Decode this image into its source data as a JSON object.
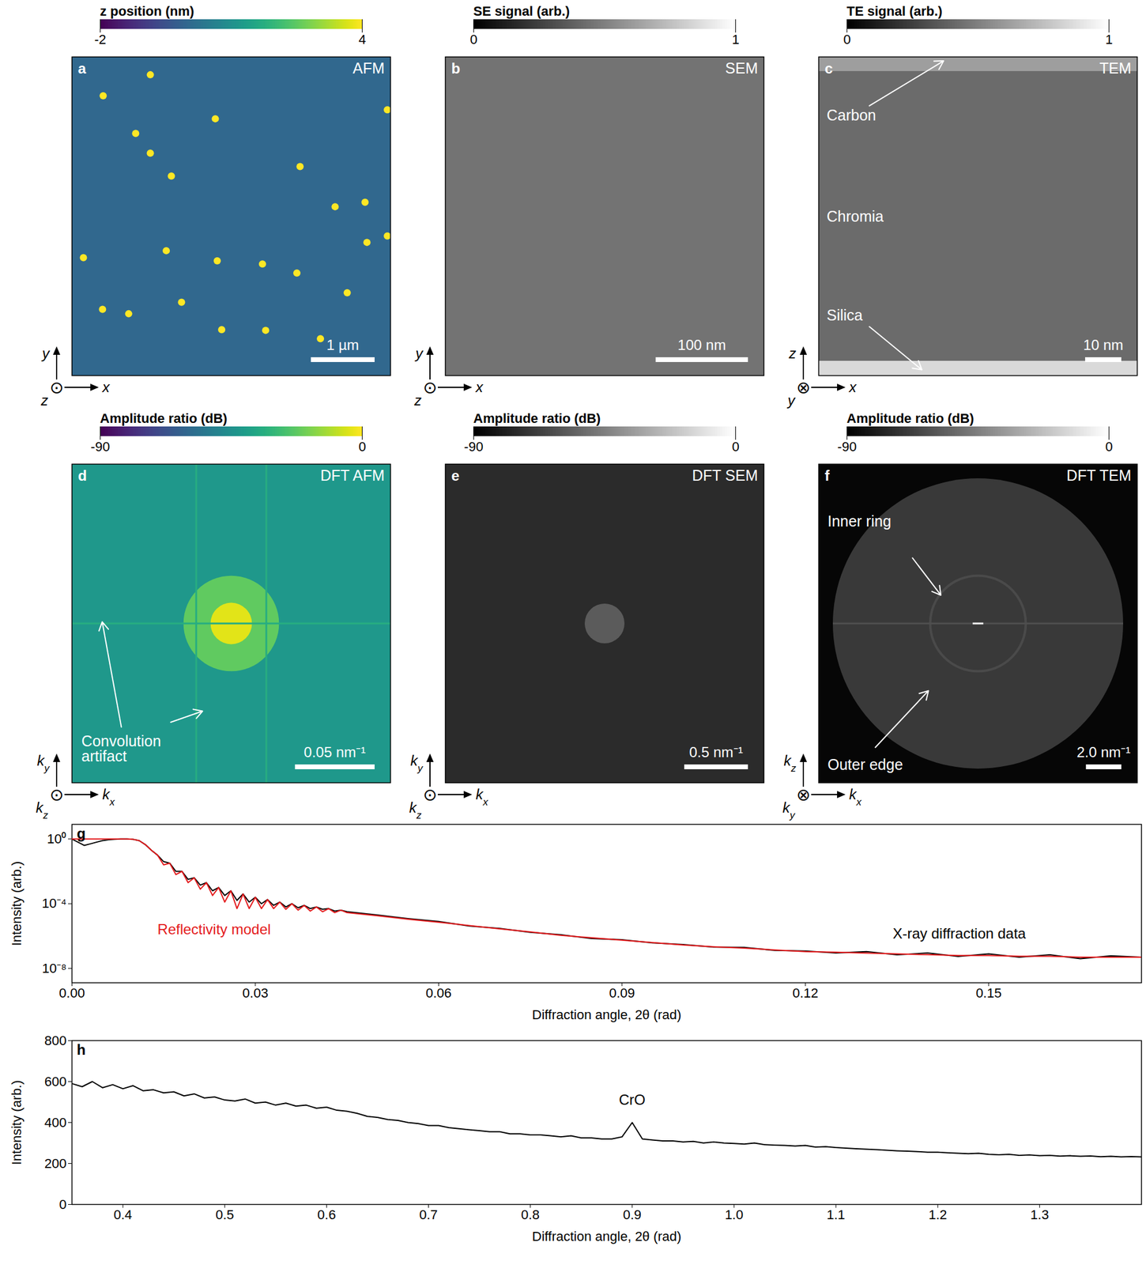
{
  "chart_data": [
    {
      "type": "image",
      "panel": "a",
      "title": "AFM",
      "colorbar": {
        "label": "z position (nm)",
        "range": [
          -2,
          4
        ],
        "ticks": [
          -2,
          4
        ],
        "color": "viridis"
      },
      "xlim": [
        0,
        5
      ],
      "ylim": [
        0,
        5
      ],
      "tick_labels": false,
      "axes": {
        "horizontal": {
          "text": "x"
        },
        "vertical": {
          "text": "y"
        },
        "normal": {
          "text": "z",
          "symbol": "⊙"
        }
      },
      "scale_bar": {
        "value": 1,
        "label": "1 µm"
      },
      "regions": [
        {
          "x": [
            0,
            5
          ],
          "y": [
            0,
            5
          ],
          "level": 0
        }
      ],
      "particles": {
        "x": [
          0.49,
          1.23,
          2.25,
          1.0,
          1.23,
          1.56,
          3.58,
          4.95,
          4.13,
          4.6,
          4.63,
          4.95,
          1.48,
          0.18,
          2.28,
          2.99,
          3.53,
          4.32,
          0.48,
          0.89,
          1.72,
          2.35,
          3.04,
          3.9
        ],
        "y": [
          4.39,
          4.72,
          4.03,
          3.8,
          3.49,
          3.13,
          3.28,
          4.17,
          2.65,
          2.72,
          2.09,
          2.19,
          1.96,
          1.85,
          1.8,
          1.75,
          1.61,
          1.3,
          1.04,
          0.97,
          1.15,
          0.72,
          0.71,
          0.58
        ],
        "z": [
          4,
          4,
          4,
          4,
          4,
          4,
          4,
          4,
          4,
          4,
          4,
          4,
          4,
          4,
          4,
          4,
          4,
          4,
          4,
          4,
          4,
          4,
          4,
          4
        ]
      },
      "annotations": []
    },
    {
      "type": "image",
      "panel": "b",
      "title": "SEM",
      "colorbar": {
        "label": "SE signal (arb.)",
        "range": [
          0,
          1
        ],
        "ticks": [
          0,
          1
        ],
        "color": "greys"
      },
      "xlim": [
        0,
        345
      ],
      "ylim": [
        0,
        345
      ],
      "tick_labels": false,
      "axes": {
        "horizontal": {
          "text": "x"
        },
        "vertical": {
          "text": "y"
        },
        "normal": {
          "text": "z",
          "symbol": "⊙"
        }
      },
      "scale_bar": {
        "value": 100,
        "label": "100 nm"
      },
      "regions": [
        {
          "x": [
            0,
            345
          ],
          "y": [
            0,
            345
          ],
          "level": 0.45
        }
      ],
      "annotations": []
    },
    {
      "type": "image",
      "panel": "c",
      "title": "TEM",
      "colorbar": {
        "label": "TE signal (arb.)",
        "range": [
          0,
          1
        ],
        "ticks": [
          0,
          1
        ],
        "color": "greys"
      },
      "xlim": [
        0,
        88
      ],
      "ylim": [
        0,
        88
      ],
      "tick_labels": false,
      "axes": {
        "horizontal": {
          "text": "x"
        },
        "vertical": {
          "text": "z"
        },
        "normal": {
          "text": "y",
          "symbol": "⊗"
        }
      },
      "scale_bar": {
        "value": 10,
        "label": "10 nm"
      },
      "regions": [
        {
          "x": [
            0,
            88
          ],
          "y": [
            0,
            88
          ],
          "level": 0.42
        },
        {
          "x": [
            0,
            88
          ],
          "y": [
            84,
            88
          ],
          "level": 0.62
        },
        {
          "x": [
            0,
            88
          ],
          "y": [
            0,
            4
          ],
          "level": 0.85
        }
      ],
      "annotations": [
        {
          "text": "Carbon",
          "x": 2.2,
          "y": 71.7,
          "arrows": [
            [
              14,
              74.5,
              34.5,
              86.9
            ]
          ]
        },
        {
          "text": "Chromia",
          "x": 2.2,
          "y": 43.9
        },
        {
          "text": "Silica",
          "x": 2.2,
          "y": 16.5,
          "arrows": [
            [
              14,
              13.5,
              28.5,
              1.6
            ]
          ]
        }
      ]
    },
    {
      "type": "image",
      "panel": "d",
      "title": "DFT AFM",
      "colorbar": {
        "label": "Amplitude ratio (dB)",
        "range": [
          -90,
          0
        ],
        "ticks": [
          -90,
          0
        ],
        "color": "viridis"
      },
      "xlim": [
        -0.1,
        0.1
      ],
      "ylim": [
        -0.1,
        0.1
      ],
      "tick_labels": false,
      "axes": {
        "horizontal": {
          "text": "k",
          "sub": "x"
        },
        "vertical": {
          "text": "k",
          "sub": "y"
        },
        "normal": {
          "text": "k",
          "sub": "z",
          "symbol": "⊙"
        }
      },
      "scale_bar": {
        "value": 0.05,
        "label": "0.05 nm⁻¹"
      },
      "regions": [
        {
          "x": [
            -0.1,
            0.1
          ],
          "y": [
            -0.1,
            0.1
          ],
          "level": -42
        }
      ],
      "disks": [
        {
          "x": 0,
          "y": 0,
          "r": 0.03,
          "level": -22
        },
        {
          "x": 0,
          "y": 0,
          "r": 0.013,
          "level": -4
        }
      ],
      "lines": [
        {
          "x": [
            -0.022,
            -0.022
          ],
          "y": [
            -0.1,
            0.1
          ],
          "level": -34
        },
        {
          "x": [
            0.022,
            0.022
          ],
          "y": [
            -0.1,
            0.1
          ],
          "level": -34
        },
        {
          "x": [
            -0.1,
            0.1
          ],
          "y": [
            0,
            0
          ],
          "level": -34
        }
      ],
      "annotations": [
        {
          "text": "Convolution\nartifact",
          "x": -0.094,
          "y": -0.079,
          "arrows": [
            [
              -0.069,
              -0.065,
              -0.081,
              0.001
            ],
            [
              -0.038,
              -0.062,
              -0.018,
              -0.055
            ]
          ]
        }
      ]
    },
    {
      "type": "image",
      "panel": "e",
      "title": "DFT SEM",
      "colorbar": {
        "label": "Amplitude ratio (dB)",
        "range": [
          -90,
          0
        ],
        "ticks": [
          -90,
          0
        ],
        "color": "greys"
      },
      "xlim": [
        -1.25,
        1.25
      ],
      "ylim": [
        -1.25,
        1.25
      ],
      "tick_labels": false,
      "axes": {
        "horizontal": {
          "text": "k",
          "sub": "x"
        },
        "vertical": {
          "text": "k",
          "sub": "y"
        },
        "normal": {
          "text": "k",
          "sub": "z",
          "symbol": "⊙"
        }
      },
      "scale_bar": {
        "value": 0.5,
        "label": "0.5 nm⁻¹"
      },
      "regions": [
        {
          "x": [
            -1.25,
            1.25
          ],
          "y": [
            -1.25,
            1.25
          ],
          "level": -75
        }
      ],
      "disks": [
        {
          "x": 0,
          "y": 0,
          "r": 0.156,
          "level": -58
        }
      ],
      "annotations": []
    },
    {
      "type": "image",
      "panel": "f",
      "title": "DFT TEM",
      "colorbar": {
        "label": "Amplitude ratio (dB)",
        "range": [
          -90,
          0
        ],
        "ticks": [
          -90,
          0
        ],
        "color": "greys"
      },
      "xlim": [
        -9,
        9
      ],
      "ylim": [
        -9,
        9
      ],
      "tick_labels": false,
      "axes": {
        "horizontal": {
          "text": "k",
          "sub": "x"
        },
        "vertical": {
          "text": "k",
          "sub": "z"
        },
        "normal": {
          "text": "k",
          "sub": "y",
          "symbol": "⊗"
        }
      },
      "scale_bar": {
        "value": 2,
        "label": "2.0 nm⁻¹"
      },
      "regions": [
        {
          "x": [
            -9,
            9
          ],
          "y": [
            -9,
            9
          ],
          "level": -88
        }
      ],
      "disks": [
        {
          "x": 0,
          "y": 0,
          "r": 8.2,
          "level": -70
        }
      ],
      "rings": [
        {
          "x": 0,
          "y": 0,
          "r": 2.7,
          "level": -64
        }
      ],
      "lines": [
        {
          "x": [
            -8.2,
            8.2
          ],
          "y": [
            0,
            0
          ],
          "level": -62
        },
        {
          "x": [
            -0.3,
            0.3
          ],
          "y": [
            0,
            0
          ],
          "level": -5
        }
      ],
      "annotations": [
        {
          "text": "Inner ring",
          "x": -8.5,
          "y": 5.74,
          "arrows": [
            [
              -3.7,
              3.7,
              -2.1,
              1.6
            ]
          ]
        },
        {
          "text": "Outer edge",
          "x": -8.5,
          "y": -8.0,
          "arrows": [
            [
              -5.8,
              -7.0,
              -2.8,
              -3.8
            ]
          ]
        }
      ]
    },
    {
      "type": "line",
      "panel": "g",
      "x_label": "Diffraction angle, 2θ (rad)",
      "y_label": "Intensity (arb.)",
      "log": "y",
      "xlim": [
        0,
        0.175
      ],
      "ylim": [
        1.3e-09,
        8
      ],
      "xticks": [
        {
          "value": 0,
          "label": "0.00"
        },
        0.03,
        0.06,
        0.09,
        0.12,
        0.15
      ],
      "yticks": [
        {
          "value": 1,
          "label": "10⁰"
        },
        {
          "value": 0.0001,
          "label": "10⁻⁴"
        },
        {
          "value": 1e-08,
          "label": "10⁻⁸"
        }
      ],
      "x": [
        0,
        0.001,
        0.002,
        0.003,
        0.004,
        0.005,
        0.006,
        0.007,
        0.008,
        0.009,
        0.01,
        0.011,
        0.012,
        0.013,
        0.014,
        0.015,
        0.016,
        0.017,
        0.018,
        0.019,
        0.02,
        0.021,
        0.022,
        0.023,
        0.024,
        0.025,
        0.026,
        0.027,
        0.028,
        0.029,
        0.03,
        0.031,
        0.032,
        0.033,
        0.034,
        0.035,
        0.036,
        0.037,
        0.038,
        0.039,
        0.04,
        0.041,
        0.042,
        0.043,
        0.044,
        0.045,
        0.05,
        0.055,
        0.06,
        0.065,
        0.07,
        0.075,
        0.08,
        0.085,
        0.09,
        0.095,
        0.1,
        0.105,
        0.11,
        0.115,
        0.12,
        0.125,
        0.13,
        0.135,
        0.14,
        0.145,
        0.15,
        0.155,
        0.16,
        0.165,
        0.17,
        0.175
      ],
      "series": [
        {
          "color": "#000000",
          "values": [
            1,
            0.63,
            0.4,
            0.5,
            0.63,
            0.79,
            0.89,
            0.95,
            1,
            1,
            0.95,
            0.79,
            0.45,
            0.2,
            0.1,
            0.04,
            0.032,
            0.01,
            0.01,
            0.0032,
            0.004,
            0.0014,
            0.002,
            0.00063,
            0.001,
            0.00032,
            0.00063,
            0.00016,
            0.0004,
            0.000126,
            0.00025,
            0.0001,
            0.00018,
            7.9e-05,
            0.000126,
            6.3e-05,
            0.0001,
            5.6e-05,
            7.9e-05,
            5e-05,
            6.3e-05,
            4.5e-05,
            5e-05,
            3.5e-05,
            4e-05,
            3.2e-05,
            2e-05,
            1.2e-05,
            7.9e-06,
            4.2e-06,
            3e-06,
            1.7e-06,
            1.2e-06,
            7e-07,
            6e-07,
            3.8e-07,
            3e-07,
            2.1e-07,
            2e-07,
            1.3e-07,
            1.2e-07,
            9e-08,
            1.1e-07,
            7e-08,
            9e-08,
            5.5e-08,
            8e-08,
            5e-08,
            7e-08,
            4e-08,
            6e-08,
            5e-08
          ]
        },
        {
          "color": "#e41a1c",
          "values": [
            1,
            1,
            1,
            1,
            1,
            1,
            1,
            1,
            1,
            1,
            0.95,
            0.79,
            0.45,
            0.2,
            0.1,
            0.025,
            0.032,
            0.0063,
            0.01,
            0.002,
            0.004,
            0.00079,
            0.002,
            0.00032,
            0.001,
            0.000126,
            0.00063,
            5e-05,
            0.0004,
            5e-05,
            0.00025,
            5e-05,
            0.00018,
            5e-05,
            0.000126,
            4.5e-05,
            0.0001,
            4e-05,
            7.9e-05,
            3.5e-05,
            6.3e-05,
            3.2e-05,
            5e-05,
            2.8e-05,
            4e-05,
            2.8e-05,
            1.8e-05,
            1.1e-05,
            7.1e-06,
            4.5e-06,
            2.8e-06,
            1.8e-06,
            1.1e-06,
            7.9e-07,
            5.6e-07,
            4e-07,
            2.8e-07,
            2.2e-07,
            1.8e-07,
            1.4e-07,
            1.1e-07,
            1e-07,
            8.9e-08,
            7.9e-08,
            7.1e-08,
            6.3e-08,
            6.3e-08,
            5.6e-08,
            5.6e-08,
            5e-08,
            5e-08,
            5e-08
          ]
        }
      ],
      "annotations": [
        {
          "text": "Reflectivity model",
          "x": 0.014,
          "y": 2.5e-06,
          "color": "#e41a1c"
        },
        {
          "text": "X-ray diffraction data",
          "x": 0.1343,
          "y": 1.4e-06,
          "color": "#000000"
        }
      ]
    },
    {
      "type": "line",
      "panel": "h",
      "x_label": "Diffraction angle, 2θ (rad)",
      "y_label": "Intensity (arb.)",
      "xlim": [
        0.35,
        1.4
      ],
      "ylim": [
        0,
        800
      ],
      "xticks": [
        0.4,
        0.5,
        0.6,
        0.7,
        0.8,
        0.9,
        {
          "value": 1,
          "label": "1.0"
        },
        1.1,
        1.2,
        1.3
      ],
      "yticks": [
        0,
        200,
        400,
        600,
        800
      ],
      "x": [
        0.35,
        0.36,
        0.37,
        0.38,
        0.39,
        0.4,
        0.41,
        0.42,
        0.43,
        0.44,
        0.45,
        0.46,
        0.47,
        0.48,
        0.49,
        0.5,
        0.51,
        0.52,
        0.53,
        0.54,
        0.55,
        0.56,
        0.57,
        0.58,
        0.59,
        0.6,
        0.61,
        0.62,
        0.63,
        0.64,
        0.65,
        0.66,
        0.67,
        0.68,
        0.69,
        0.7,
        0.71,
        0.72,
        0.73,
        0.74,
        0.75,
        0.76,
        0.77,
        0.78,
        0.79,
        0.8,
        0.81,
        0.82,
        0.83,
        0.84,
        0.85,
        0.86,
        0.87,
        0.88,
        0.89,
        0.9,
        0.91,
        0.92,
        0.93,
        0.94,
        0.95,
        0.96,
        0.97,
        0.98,
        0.99,
        1.0,
        1.01,
        1.02,
        1.03,
        1.04,
        1.05,
        1.06,
        1.07,
        1.08,
        1.09,
        1.1,
        1.11,
        1.12,
        1.13,
        1.14,
        1.15,
        1.16,
        1.17,
        1.18,
        1.19,
        1.2,
        1.21,
        1.22,
        1.23,
        1.24,
        1.25,
        1.26,
        1.27,
        1.28,
        1.29,
        1.3,
        1.31,
        1.32,
        1.33,
        1.34,
        1.35,
        1.36,
        1.37,
        1.38,
        1.39,
        1.4
      ],
      "series": [
        {
          "color": "#000000",
          "values": [
            590,
            575,
            600,
            570,
            585,
            565,
            580,
            555,
            560,
            545,
            550,
            530,
            540,
            520,
            525,
            510,
            505,
            515,
            495,
            500,
            485,
            495,
            480,
            485,
            470,
            475,
            460,
            455,
            445,
            430,
            425,
            415,
            410,
            400,
            395,
            385,
            385,
            375,
            370,
            365,
            360,
            355,
            355,
            345,
            345,
            340,
            340,
            335,
            330,
            335,
            325,
            325,
            320,
            320,
            330,
            400,
            320,
            315,
            310,
            310,
            305,
            308,
            300,
            305,
            300,
            298,
            295,
            300,
            292,
            290,
            288,
            285,
            288,
            280,
            282,
            278,
            275,
            272,
            270,
            268,
            265,
            262,
            260,
            258,
            255,
            255,
            252,
            250,
            248,
            250,
            245,
            243,
            245,
            240,
            242,
            238,
            240,
            236,
            238,
            235,
            237,
            233,
            235,
            232,
            234,
            232
          ]
        }
      ],
      "annotations": [
        {
          "text": "CrO",
          "x": 0.9,
          "y": 510,
          "color": "#000000"
        }
      ]
    }
  ]
}
